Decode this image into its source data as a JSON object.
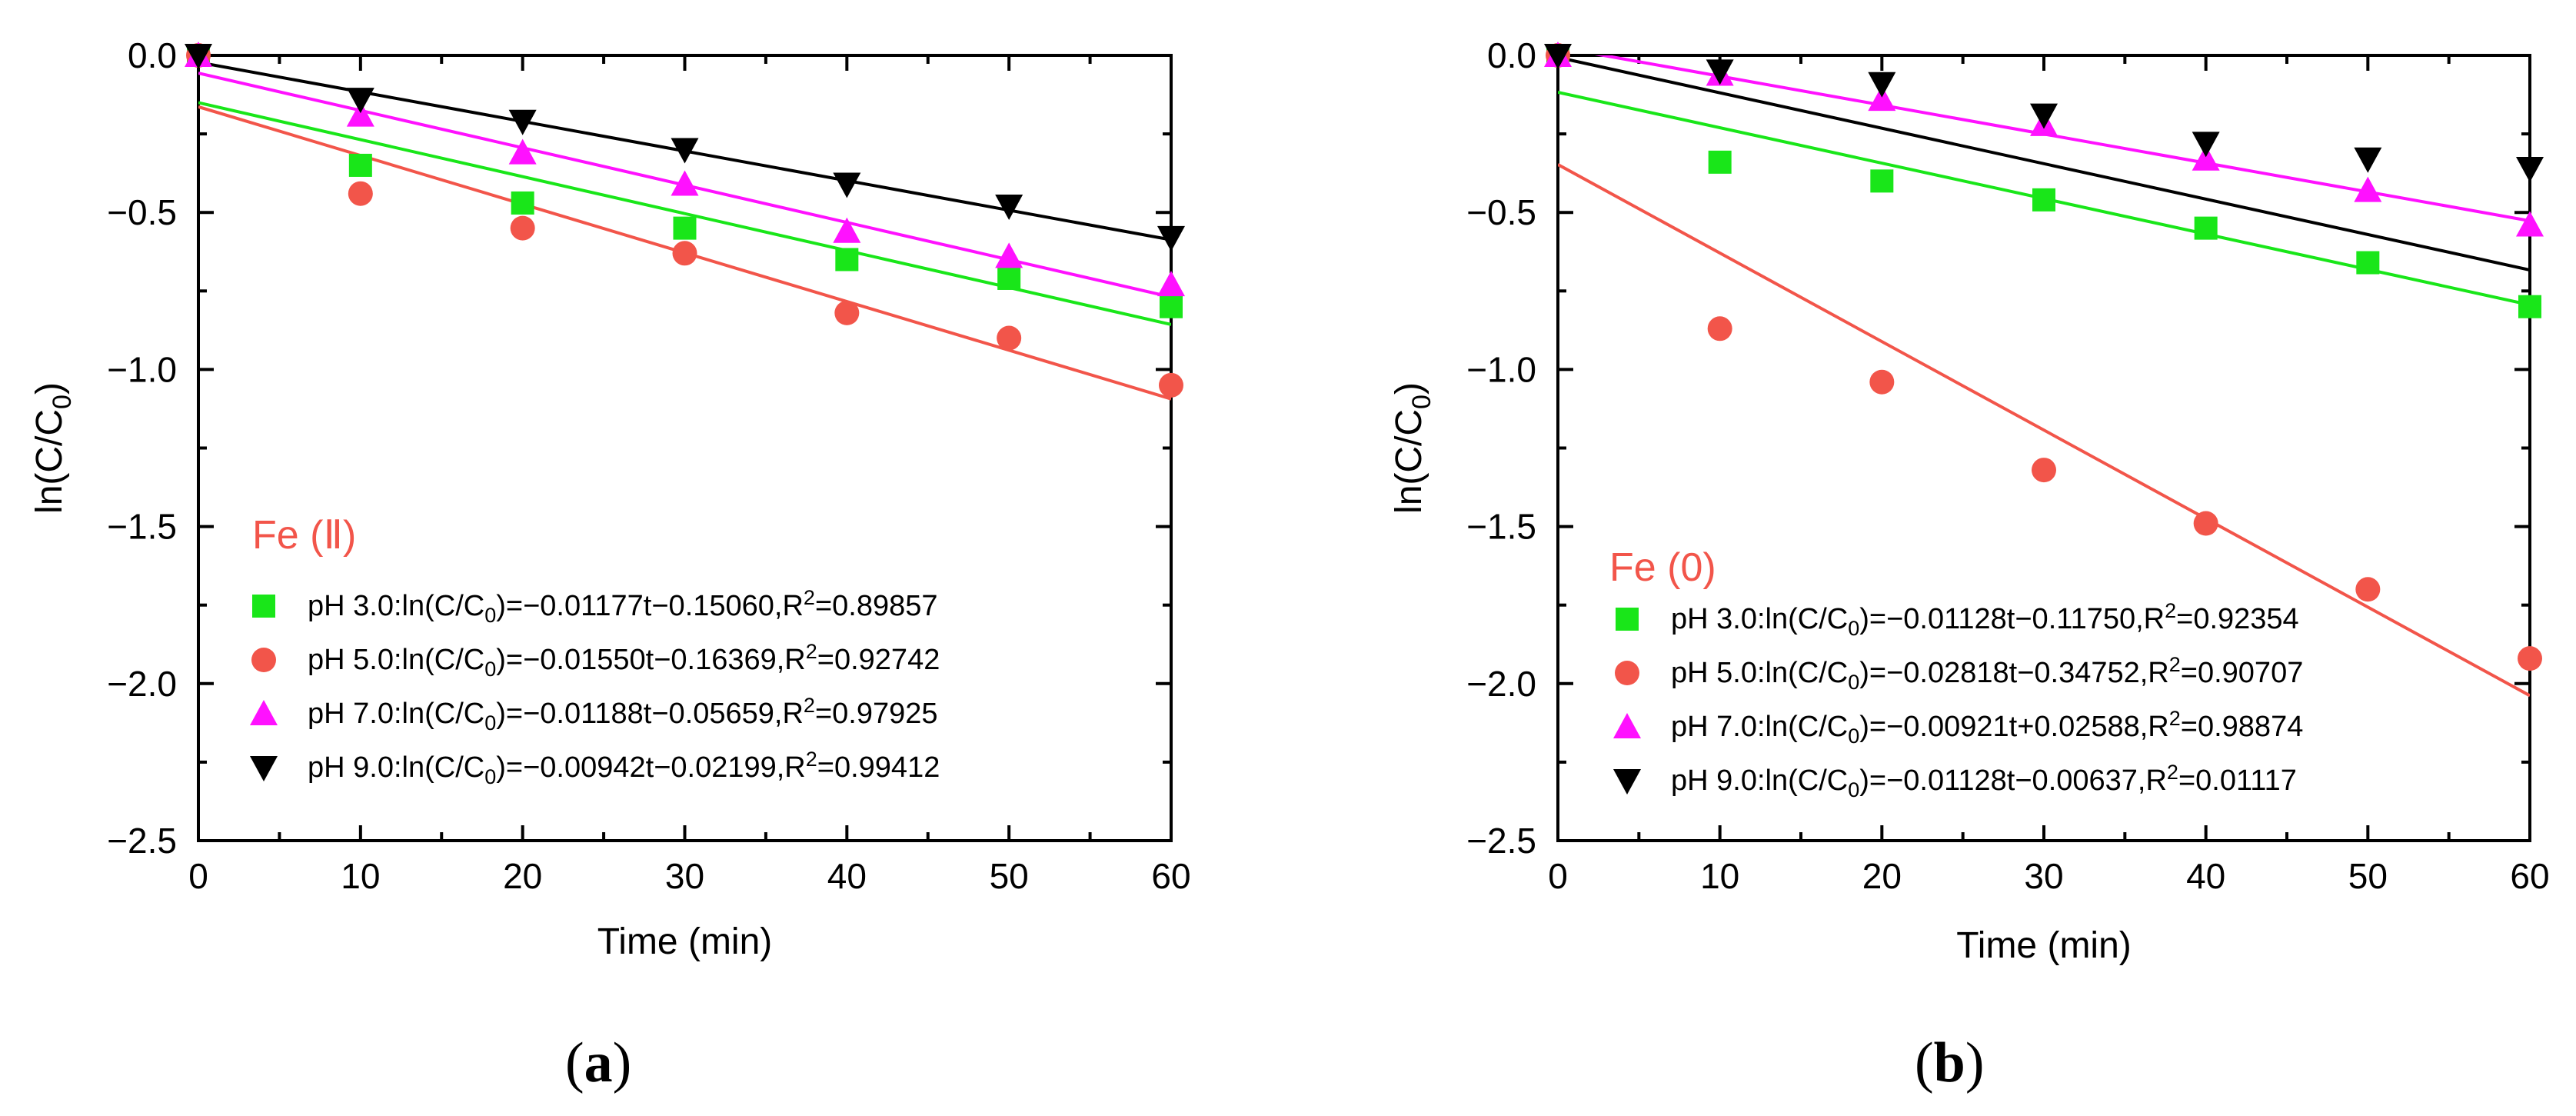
{
  "chart_data": [
    {
      "type": "scatter",
      "panel": "a",
      "panel_label": "a",
      "title": "Fe (Ⅱ)",
      "xlabel": "Time (min)",
      "ylabel": "ln(C/C0)",
      "xlim": [
        0,
        60
      ],
      "ylim": [
        -2.5,
        0.0
      ],
      "x_ticks": [
        "0",
        "10",
        "20",
        "30",
        "40",
        "50",
        "60"
      ],
      "y_ticks": [
        "0.0",
        "-0.5",
        "-1.0",
        "-1.5",
        "-2.0",
        "-2.5"
      ],
      "x": [
        0,
        10,
        20,
        30,
        40,
        50,
        60
      ],
      "grid": false,
      "legend_position": "lower-left",
      "series": [
        {
          "name": "pH 3.0",
          "marker": "square",
          "color": "#19e619",
          "label_prefix": "pH 3.0:ln(C/C",
          "label_sub": "0",
          "label_mid": ")=−0.01177t−0.15060,R",
          "label_sup": "2",
          "label_end": "=0.89857",
          "values": [
            0,
            -0.35,
            -0.47,
            -0.55,
            -0.65,
            -0.71,
            -0.8
          ],
          "fit": {
            "slope": -0.01177,
            "intercept": -0.1506
          }
        },
        {
          "name": "pH 5.0",
          "marker": "circle",
          "color": "#f2554a",
          "label_prefix": "pH 5.0:ln(C/C",
          "label_sub": "0",
          "label_mid": ")=−0.01550t−0.16369,R",
          "label_sup": "2",
          "label_end": "=0.92742",
          "values": [
            0,
            -0.44,
            -0.55,
            -0.63,
            -0.82,
            -0.9,
            -1.05
          ],
          "fit": {
            "slope": -0.0155,
            "intercept": -0.16369
          }
        },
        {
          "name": "pH 7.0",
          "marker": "triangle-up",
          "color": "#ff11ff",
          "label_prefix": "pH 7.0:ln(C/C",
          "label_sub": "0",
          "label_mid": ")=−0.01188t−0.05659,R",
          "label_sup": "2",
          "label_end": "=0.97925",
          "values": [
            0,
            -0.19,
            -0.31,
            -0.41,
            -0.56,
            -0.64,
            -0.73
          ],
          "fit": {
            "slope": -0.01188,
            "intercept": -0.05659
          }
        },
        {
          "name": "pH 9.0",
          "marker": "triangle-down",
          "color": "#000000",
          "label_prefix": "pH 9.0:ln(C/C",
          "label_sub": "0",
          "label_mid": ")=−0.00942t−0.02199,R",
          "label_sup": "2",
          "label_end": "=0.99412",
          "values": [
            0,
            -0.14,
            -0.21,
            -0.3,
            -0.41,
            -0.48,
            -0.58
          ],
          "fit": {
            "slope": -0.00942,
            "intercept": -0.02199
          }
        }
      ]
    },
    {
      "type": "scatter",
      "panel": "b",
      "panel_label": "b",
      "title": "Fe (0)",
      "xlabel": "Time (min)",
      "ylabel": "ln(C/C0)",
      "xlim": [
        0,
        60
      ],
      "ylim": [
        -2.5,
        0.0
      ],
      "x_ticks": [
        "0",
        "10",
        "20",
        "30",
        "40",
        "50",
        "60"
      ],
      "y_ticks": [
        "0.0",
        "-0.5",
        "-1.0",
        "-1.5",
        "-2.0",
        "-2.5"
      ],
      "x": [
        0,
        10,
        20,
        30,
        40,
        50,
        60
      ],
      "grid": false,
      "legend_position": "lower-left",
      "series": [
        {
          "name": "pH 3.0",
          "marker": "square",
          "color": "#19e619",
          "label_prefix": "pH 3.0:ln(C/C",
          "label_sub": "0",
          "label_mid": ")=−0.01128t−0.11750,R",
          "label_sup": "2",
          "label_end": "=0.92354",
          "values": [
            0,
            -0.34,
            -0.4,
            -0.46,
            -0.55,
            -0.66,
            -0.8
          ],
          "fit": {
            "slope": -0.01128,
            "intercept": -0.1175
          }
        },
        {
          "name": "pH 5.0",
          "marker": "circle",
          "color": "#f2554a",
          "label_prefix": "pH 5.0:ln(C/C",
          "label_sub": "0",
          "label_mid": ")=−0.02818t−0.34752,R",
          "label_sup": "2",
          "label_end": "=0.90707",
          "values": [
            0,
            -0.87,
            -1.04,
            -1.32,
            -1.49,
            -1.7,
            -1.92
          ],
          "fit": {
            "slope": -0.02818,
            "intercept": -0.34752
          }
        },
        {
          "name": "pH 7.0",
          "marker": "triangle-up",
          "color": "#ff11ff",
          "label_prefix": "pH 7.0:ln(C/C",
          "label_sub": "0",
          "label_mid": ")=−0.00921t+0.02588,R",
          "label_sup": "2",
          "label_end": "=0.98874",
          "values": [
            0,
            -0.06,
            -0.14,
            -0.22,
            -0.33,
            -0.43,
            -0.54
          ],
          "fit": {
            "slope": -0.00921,
            "intercept": 0.02588
          }
        },
        {
          "name": "pH 9.0",
          "marker": "triangle-down",
          "color": "#000000",
          "label_prefix": "pH 9.0:ln(C/C",
          "label_sub": "0",
          "label_mid": ")=−0.01128t−0.00637,R",
          "label_sup": "2",
          "label_end": "=0.01117",
          "values": [
            0,
            -0.05,
            -0.09,
            -0.19,
            -0.28,
            -0.33,
            -0.36
          ],
          "fit": {
            "slope": -0.01128,
            "intercept": -0.00637
          }
        }
      ]
    }
  ]
}
